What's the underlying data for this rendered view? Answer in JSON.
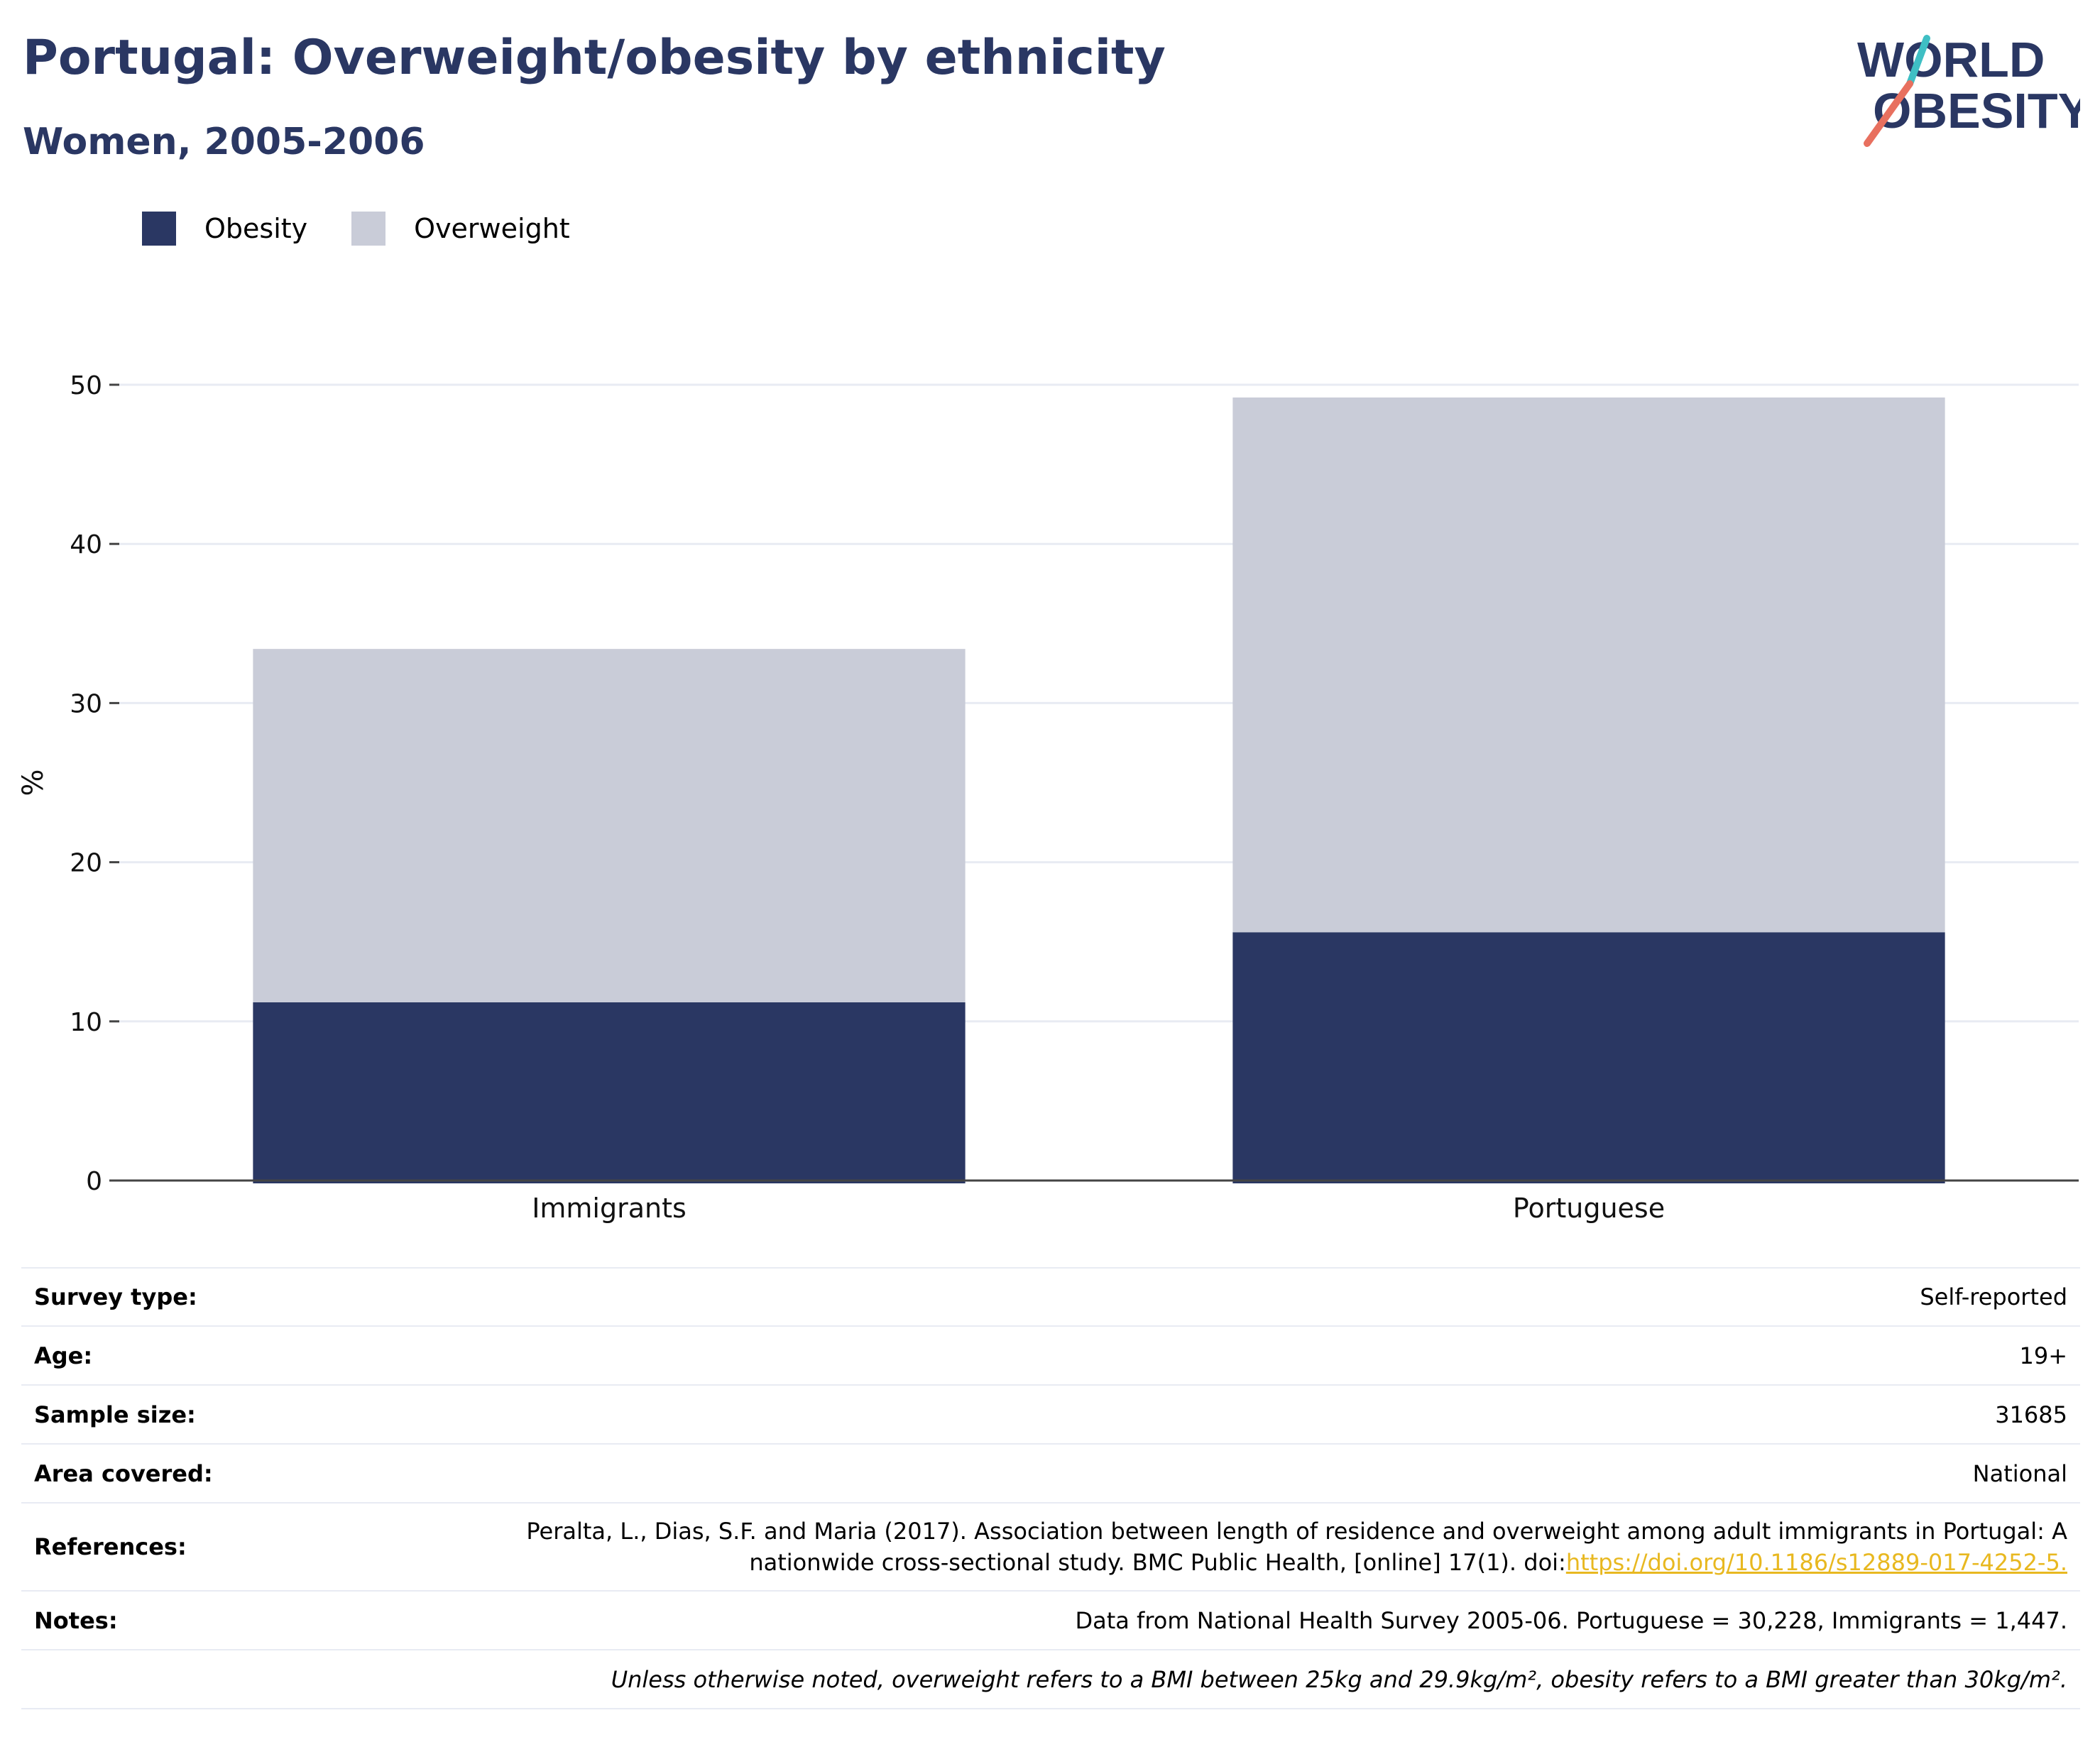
{
  "header": {
    "title": "Portugal: Overweight/obesity by ethnicity",
    "subtitle": "Women, 2005-2006"
  },
  "logo": {
    "line1": "WORLD",
    "line2": "OBESITY"
  },
  "colors": {
    "obesity": "#2a3763",
    "overweight": "#c9ccd8",
    "accent_teal": "#3fbfc4",
    "accent_red": "#e8705f",
    "link": "#e8b820"
  },
  "chart_data": {
    "type": "bar",
    "stacked": true,
    "categories": [
      "Immigrants",
      "Portuguese"
    ],
    "series": [
      {
        "name": "Obesity",
        "values": [
          11.2,
          15.6
        ]
      },
      {
        "name": "Overweight",
        "values": [
          22.2,
          33.6
        ]
      }
    ],
    "ylabel": "%",
    "ylim": [
      0,
      50
    ],
    "yticks": [
      0,
      10,
      20,
      30,
      40,
      50
    ],
    "grid": true,
    "legend": "top-left"
  },
  "info": {
    "survey_type": {
      "label": "Survey type:",
      "value": "Self-reported"
    },
    "age": {
      "label": "Age:",
      "value": "19+"
    },
    "sample_size": {
      "label": "Sample size:",
      "value": "31685"
    },
    "area": {
      "label": "Area covered:",
      "value": "National"
    },
    "references": {
      "label": "References:",
      "text_line1": "Peralta, L., Dias, S.F. and Maria (2017). Association between length of residence and overweight among adult immigrants in Portugal: A",
      "text_line2": "nationwide cross-sectional study. BMC Public Health, [online] 17(1). doi:",
      "link": "https://doi.org/10.1186/s12889-017-4252-5."
    },
    "notes": {
      "label": "Notes:",
      "value": "Data from National Health Survey 2005-06. Portuguese = 30,228, Immigrants = 1,447."
    },
    "definition": "Unless otherwise noted, overweight refers to a BMI between 25kg and 29.9kg/m², obesity refers to a BMI greater than 30kg/m²."
  }
}
